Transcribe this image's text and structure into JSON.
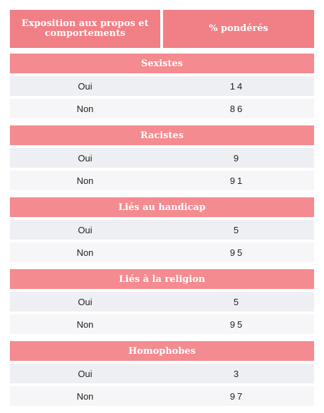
{
  "header": {
    "col1": "Exposition aux propos et comportements",
    "col2": "% pondérés"
  },
  "sections": [
    {
      "title": "Sexistes",
      "rows": [
        {
          "label": "Oui",
          "value": "14"
        },
        {
          "label": "Non",
          "value": "86"
        }
      ]
    },
    {
      "title": "Racistes",
      "rows": [
        {
          "label": "Oui",
          "value": "9"
        },
        {
          "label": "Non",
          "value": "91"
        }
      ]
    },
    {
      "title": "Liés au handicap",
      "rows": [
        {
          "label": "Oui",
          "value": "5"
        },
        {
          "label": "Non",
          "value": "95"
        }
      ]
    },
    {
      "title": "Liés à la religion",
      "rows": [
        {
          "label": "Oui",
          "value": "5"
        },
        {
          "label": "Non",
          "value": "95"
        }
      ]
    },
    {
      "title": "Homophobes",
      "rows": [
        {
          "label": "Oui",
          "value": "3"
        },
        {
          "label": "Non",
          "value": "97"
        }
      ]
    }
  ],
  "colors": {
    "header": "#f17f86",
    "section": "#f48b90",
    "row_odd": "#eeeff3",
    "row_even": "#f6f6f8"
  }
}
